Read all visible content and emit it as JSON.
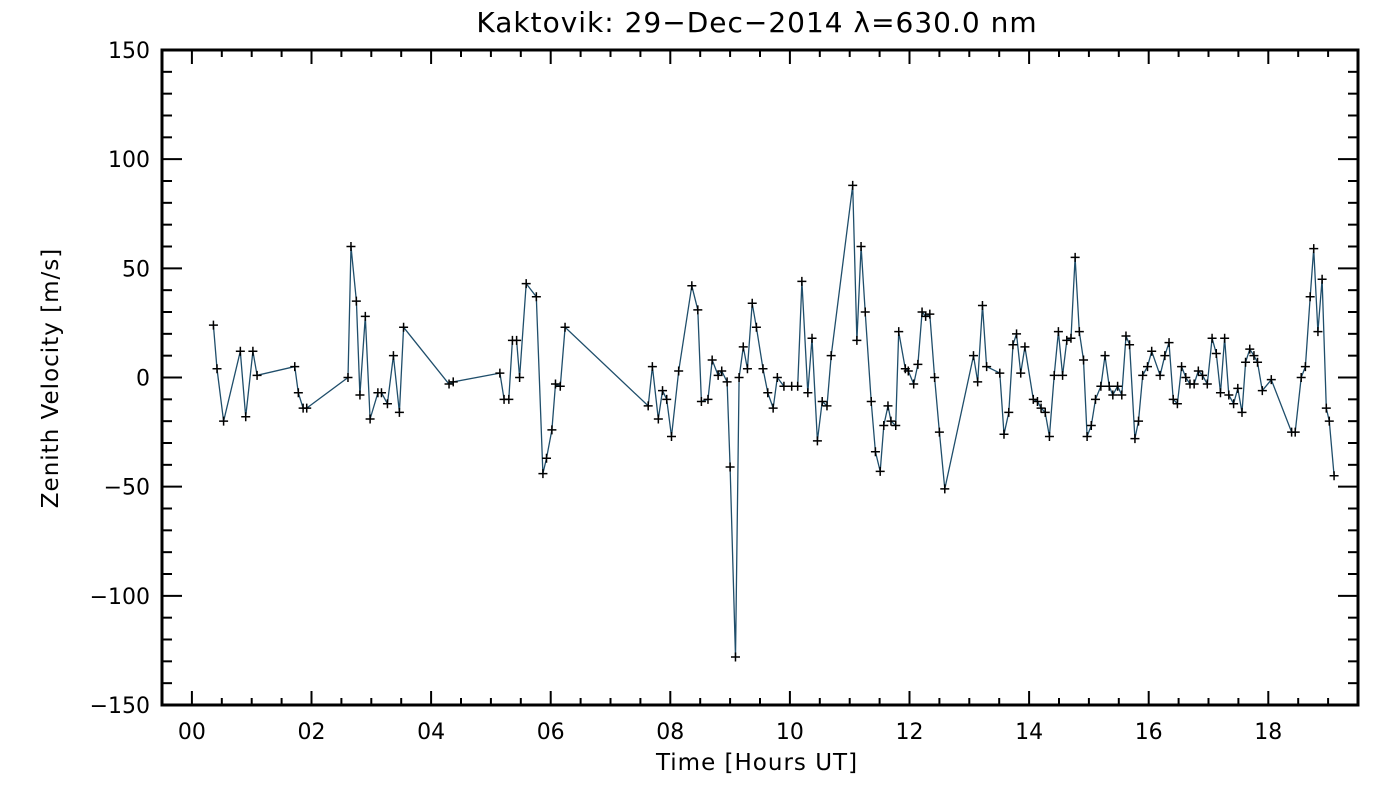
{
  "chart_data": {
    "type": "line",
    "title": "Kaktovik: 29−Dec−2014 λ=630.0 nm",
    "xlabel": "Time [Hours UT]",
    "ylabel": "Zenith Velocity [m/s]",
    "xlim": [
      -0.5,
      19.5
    ],
    "ylim": [
      -150,
      150
    ],
    "x_major_ticks": [
      0,
      2,
      4,
      6,
      8,
      10,
      12,
      14,
      16,
      18
    ],
    "x_tick_labels": [
      "00",
      "02",
      "04",
      "06",
      "08",
      "10",
      "12",
      "14",
      "16",
      "18"
    ],
    "y_major_ticks": [
      -150,
      -100,
      -50,
      0,
      50,
      100,
      150
    ],
    "y_tick_labels": [
      "−150",
      "−100",
      "−50",
      "0",
      "50",
      "100",
      "150"
    ],
    "grid": false,
    "legend": "none",
    "line_color": "#1f4e6b",
    "marker": "plus",
    "series": [
      {
        "points": [
          [
            0.36,
            24
          ],
          [
            0.42,
            4
          ],
          [
            0.53,
            -20
          ],
          [
            0.81,
            12
          ],
          [
            0.9,
            -18
          ],
          [
            1.02,
            12
          ],
          [
            1.09,
            1
          ],
          [
            1.72,
            5
          ],
          [
            1.78,
            -7
          ],
          [
            1.86,
            -14
          ],
          [
            1.92,
            -14
          ],
          [
            2.61,
            0
          ],
          [
            2.66,
            60
          ],
          [
            2.75,
            35
          ],
          [
            2.81,
            -8
          ],
          [
            2.9,
            28
          ],
          [
            2.98,
            -19
          ],
          [
            3.11,
            -7
          ],
          [
            3.17,
            -7
          ],
          [
            3.27,
            -12
          ],
          [
            3.37,
            10
          ],
          [
            3.47,
            -16
          ],
          [
            3.54,
            23
          ],
          [
            4.3,
            -3
          ],
          [
            4.37,
            -2
          ],
          [
            5.15,
            2
          ],
          [
            5.22,
            -10
          ],
          [
            5.3,
            -10
          ],
          [
            5.36,
            17
          ],
          [
            5.43,
            17
          ],
          [
            5.48,
            0
          ],
          [
            5.59,
            43
          ],
          [
            5.76,
            37
          ],
          [
            5.87,
            -44
          ],
          [
            5.93,
            -37
          ],
          [
            6.02,
            -24
          ],
          [
            6.08,
            -3
          ],
          [
            6.16,
            -4
          ],
          [
            6.24,
            23
          ],
          [
            7.63,
            -13
          ],
          [
            7.7,
            5
          ],
          [
            7.8,
            -19
          ],
          [
            7.87,
            -6
          ],
          [
            7.94,
            -10
          ],
          [
            8.02,
            -27
          ],
          [
            8.14,
            3
          ],
          [
            8.36,
            42
          ],
          [
            8.46,
            31
          ],
          [
            8.52,
            -11
          ],
          [
            8.63,
            -10
          ],
          [
            8.7,
            8
          ],
          [
            8.8,
            1
          ],
          [
            8.86,
            3
          ],
          [
            8.95,
            -2
          ],
          [
            9.0,
            -41
          ],
          [
            9.09,
            -128
          ],
          [
            9.15,
            0
          ],
          [
            9.22,
            14
          ],
          [
            9.29,
            4
          ],
          [
            9.37,
            34
          ],
          [
            9.44,
            23
          ],
          [
            9.55,
            4
          ],
          [
            9.63,
            -7
          ],
          [
            9.72,
            -14
          ],
          [
            9.79,
            0
          ],
          [
            9.9,
            -4
          ],
          [
            10.03,
            -4
          ],
          [
            10.13,
            -4
          ],
          [
            10.2,
            44
          ],
          [
            10.3,
            -7
          ],
          [
            10.37,
            18
          ],
          [
            10.46,
            -29
          ],
          [
            10.54,
            -11
          ],
          [
            10.62,
            -13
          ],
          [
            10.69,
            10
          ],
          [
            11.05,
            88
          ],
          [
            11.12,
            17
          ],
          [
            11.19,
            60
          ],
          [
            11.26,
            30
          ],
          [
            11.36,
            -11
          ],
          [
            11.43,
            -34
          ],
          [
            11.51,
            -43
          ],
          [
            11.57,
            -22
          ],
          [
            11.64,
            -13
          ],
          [
            11.69,
            -20
          ],
          [
            11.77,
            -22
          ],
          [
            11.82,
            21
          ],
          [
            11.93,
            4
          ],
          [
            11.98,
            3
          ],
          [
            12.07,
            -3
          ],
          [
            12.14,
            6
          ],
          [
            12.21,
            30
          ],
          [
            12.27,
            28
          ],
          [
            12.34,
            29
          ],
          [
            12.42,
            0
          ],
          [
            12.5,
            -25
          ],
          [
            12.59,
            -51
          ],
          [
            13.07,
            10
          ],
          [
            13.14,
            -2
          ],
          [
            13.22,
            33
          ],
          [
            13.29,
            5
          ],
          [
            13.51,
            2
          ],
          [
            13.58,
            -26
          ],
          [
            13.66,
            -16
          ],
          [
            13.73,
            15
          ],
          [
            13.79,
            20
          ],
          [
            13.86,
            2
          ],
          [
            13.93,
            14
          ],
          [
            14.07,
            -10
          ],
          [
            14.14,
            -11
          ],
          [
            14.2,
            -14
          ],
          [
            14.27,
            -16
          ],
          [
            14.34,
            -27
          ],
          [
            14.42,
            1
          ],
          [
            14.49,
            21
          ],
          [
            14.56,
            1
          ],
          [
            14.63,
            17
          ],
          [
            14.7,
            18
          ],
          [
            14.77,
            55
          ],
          [
            14.84,
            21
          ],
          [
            14.91,
            8
          ],
          [
            14.97,
            -27
          ],
          [
            15.04,
            -22
          ],
          [
            15.11,
            -10
          ],
          [
            15.2,
            -4
          ],
          [
            15.27,
            10
          ],
          [
            15.34,
            -4
          ],
          [
            15.4,
            -8
          ],
          [
            15.48,
            -4
          ],
          [
            15.55,
            -8
          ],
          [
            15.62,
            19
          ],
          [
            15.68,
            15
          ],
          [
            15.77,
            -28
          ],
          [
            15.83,
            -20
          ],
          [
            15.9,
            1
          ],
          [
            15.98,
            5
          ],
          [
            16.05,
            12
          ],
          [
            16.19,
            1
          ],
          [
            16.27,
            10
          ],
          [
            16.34,
            16
          ],
          [
            16.41,
            -10
          ],
          [
            16.48,
            -12
          ],
          [
            16.55,
            5
          ],
          [
            16.62,
            0
          ],
          [
            16.69,
            -3
          ],
          [
            16.76,
            -3
          ],
          [
            16.83,
            3
          ],
          [
            16.9,
            1
          ],
          [
            16.98,
            -3
          ],
          [
            17.06,
            18
          ],
          [
            17.13,
            11
          ],
          [
            17.2,
            -7
          ],
          [
            17.27,
            18
          ],
          [
            17.34,
            -8
          ],
          [
            17.42,
            -12
          ],
          [
            17.49,
            -5
          ],
          [
            17.56,
            -16
          ],
          [
            17.62,
            7
          ],
          [
            17.69,
            13
          ],
          [
            17.76,
            10
          ],
          [
            17.82,
            7
          ],
          [
            17.9,
            -6
          ],
          [
            18.05,
            -1
          ],
          [
            18.39,
            -25
          ],
          [
            18.45,
            -25
          ],
          [
            18.55,
            0
          ],
          [
            18.62,
            5
          ],
          [
            18.7,
            37
          ],
          [
            18.76,
            59
          ],
          [
            18.83,
            21
          ],
          [
            18.9,
            45
          ],
          [
            18.97,
            -14
          ],
          [
            19.02,
            -20
          ],
          [
            19.1,
            -45
          ]
        ]
      }
    ]
  }
}
